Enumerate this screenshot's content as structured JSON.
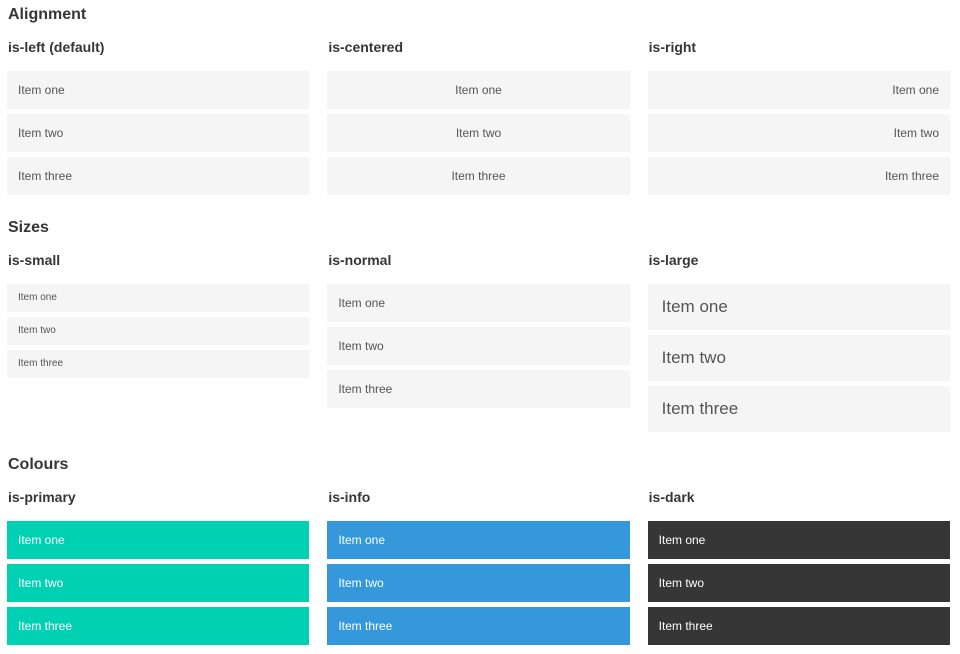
{
  "sections": {
    "alignment": {
      "title": "Alignment",
      "columns": [
        {
          "label": "is-left (default)",
          "align": "left",
          "items": [
            "Item one",
            "Item two",
            "Item three"
          ]
        },
        {
          "label": "is-centered",
          "align": "center",
          "items": [
            "Item one",
            "Item two",
            "Item three"
          ]
        },
        {
          "label": "is-right",
          "align": "right",
          "items": [
            "Item one",
            "Item two",
            "Item three"
          ]
        }
      ]
    },
    "sizes": {
      "title": "Sizes",
      "columns": [
        {
          "label": "is-small",
          "size": "small",
          "items": [
            "Item one",
            "Item two",
            "Item three"
          ]
        },
        {
          "label": "is-normal",
          "size": "normal",
          "items": [
            "Item one",
            "Item two",
            "Item three"
          ]
        },
        {
          "label": "is-large",
          "size": "large",
          "items": [
            "Item one",
            "Item two",
            "Item three"
          ]
        }
      ]
    },
    "colours": {
      "title": "Colours",
      "columns": [
        {
          "label": "is-primary",
          "color": "#00d1b2",
          "items": [
            "Item one",
            "Item two",
            "Item three"
          ]
        },
        {
          "label": "is-info",
          "color": "#3498db",
          "items": [
            "Item one",
            "Item two",
            "Item three"
          ]
        },
        {
          "label": "is-dark",
          "color": "#363636",
          "items": [
            "Item one",
            "Item two",
            "Item three"
          ]
        }
      ]
    }
  },
  "colors": {
    "item_background": "#f5f5f5",
    "item_text": "#555555",
    "heading_text": "#363636",
    "primary": "#00d1b2",
    "info": "#3498db",
    "dark": "#363636",
    "colored_item_text": "#ffffff"
  }
}
